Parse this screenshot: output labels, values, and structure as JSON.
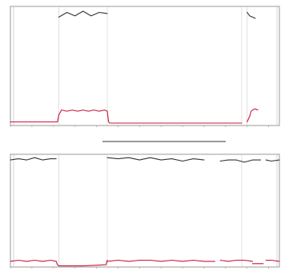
{
  "chart_data": [
    {
      "type": "line",
      "xlim": [
        0,
        100
      ],
      "ylim": [
        0,
        100
      ],
      "x_ticks": [
        0,
        8,
        16,
        24,
        32,
        40,
        48,
        56,
        64,
        72,
        80,
        88,
        96
      ],
      "vertical_markers": [
        18,
        36,
        86,
        88
      ],
      "series": [
        {
          "color": "#333333",
          "segments": [
            {
              "x": [
                18,
                21,
                24,
                27,
                30,
                33,
                36
              ],
              "y": [
                91,
                95,
                92,
                96,
                92,
                95,
                94
              ]
            },
            {
              "x": [
                88,
                89,
                90,
                91
              ],
              "y": [
                95,
                92,
                91,
                90
              ]
            }
          ]
        },
        {
          "color": "#c8143c",
          "segments": [
            {
              "x": [
                0,
                17,
                17.5,
                18,
                19,
                21,
                23,
                25,
                27,
                29,
                31,
                33,
                35,
                36,
                36.5,
                37,
                60,
                86
              ],
              "y": [
                3,
                3,
                3,
                9,
                13,
                12,
                13,
                12,
                13,
                12,
                13,
                12,
                13,
                12,
                3,
                2,
                2,
                2
              ]
            },
            {
              "x": [
                88,
                89,
                89.5,
                90,
                91,
                92
              ],
              "y": [
                3,
                8,
                12,
                13,
                14,
                13
              ]
            }
          ]
        }
      ]
    },
    {
      "type": "line",
      "xlim": [
        0,
        100
      ],
      "ylim": [
        0,
        100
      ],
      "x_ticks": [
        0,
        8,
        16,
        24,
        32,
        40,
        48,
        56,
        64,
        72,
        80,
        88,
        96
      ],
      "vertical_markers": [
        18,
        36,
        86
      ],
      "series": [
        {
          "color": "#333333",
          "segments": [
            {
              "x": [
                0,
                3,
                6,
                9,
                12,
                15,
                17
              ],
              "y": [
                95,
                96,
                95,
                97,
                95,
                96,
                96
              ]
            },
            {
              "x": [
                36,
                40,
                44,
                48,
                52,
                56,
                60,
                64,
                68,
                72
              ],
              "y": [
                97,
                96,
                97,
                95,
                97,
                95,
                96,
                94,
                96,
                95
              ]
            },
            {
              "x": [
                78,
                81,
                84,
                87,
                90,
                93
              ],
              "y": [
                94,
                95,
                95,
                93,
                95,
                95
              ]
            },
            {
              "x": [
                95,
                97,
                100
              ],
              "y": [
                95,
                94,
                95
              ]
            }
          ]
        },
        {
          "color": "#c8143c",
          "segments": [
            {
              "x": [
                0,
                3,
                6,
                9,
                12,
                15,
                17
              ],
              "y": [
                5,
                6,
                5,
                6,
                5,
                6,
                5
              ]
            },
            {
              "x": [
                17,
                17.5,
                18,
                27,
                35.5,
                36
              ],
              "y": [
                5,
                2,
                1,
                1,
                2,
                6
              ]
            },
            {
              "x": [
                36,
                40,
                44,
                48,
                52,
                56,
                60,
                64,
                68,
                72,
                76
              ],
              "y": [
                5,
                6,
                5,
                6,
                6,
                5,
                6,
                5,
                6,
                5,
                5
              ]
            },
            {
              "x": [
                78,
                81,
                84,
                87,
                90
              ],
              "y": [
                6,
                5,
                6,
                6,
                5
              ]
            },
            {
              "x": [
                90,
                92,
                94
              ],
              "y": [
                3,
                3,
                3
              ]
            },
            {
              "x": [
                95,
                97,
                100
              ],
              "y": [
                6,
                6,
                5
              ]
            }
          ]
        }
      ]
    }
  ]
}
